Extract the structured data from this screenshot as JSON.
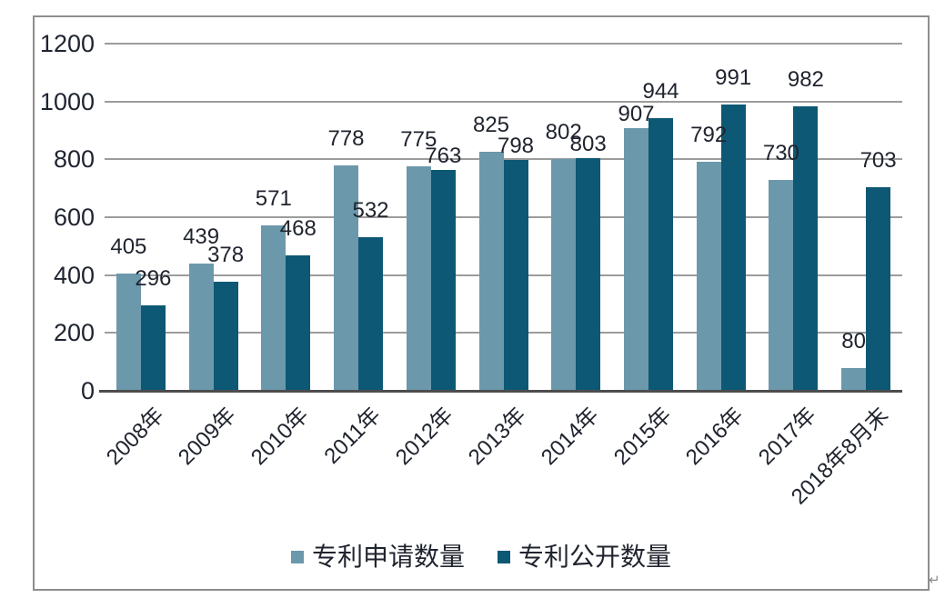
{
  "page": {
    "return_mark": "↵"
  },
  "chart_data": {
    "type": "bar",
    "categories": [
      "2008年",
      "2009年",
      "2010年",
      "2011年",
      "2012年",
      "2013年",
      "2014年",
      "2015年",
      "2016年",
      "2017年",
      "2018年8月末"
    ],
    "series": [
      {
        "name": "专利申请数量",
        "color": "#6C98AC",
        "values": [
          405,
          439,
          571,
          778,
          775,
          825,
          802,
          907,
          792,
          730,
          80
        ]
      },
      {
        "name": "专利公开数量",
        "color": "#0D5874",
        "values": [
          296,
          378,
          468,
          532,
          763,
          798,
          803,
          944,
          991,
          982,
          703
        ]
      }
    ],
    "title": "",
    "xlabel": "",
    "ylabel": "",
    "ylim": [
      0,
      1200
    ],
    "yticks": [
      0,
      200,
      400,
      600,
      800,
      1000,
      1200
    ],
    "grid": true,
    "data_labels": true,
    "legend_position": "bottom",
    "x_label_rotation_deg": -45
  },
  "colors": {
    "series_light": "#6C98AC",
    "series_dark": "#0D5874",
    "gridline": "#9c9c9c",
    "axis_line": "#4d4d4d",
    "text": "#20242e",
    "frame_border": "#8e8e8e",
    "background": "#ffffff"
  }
}
